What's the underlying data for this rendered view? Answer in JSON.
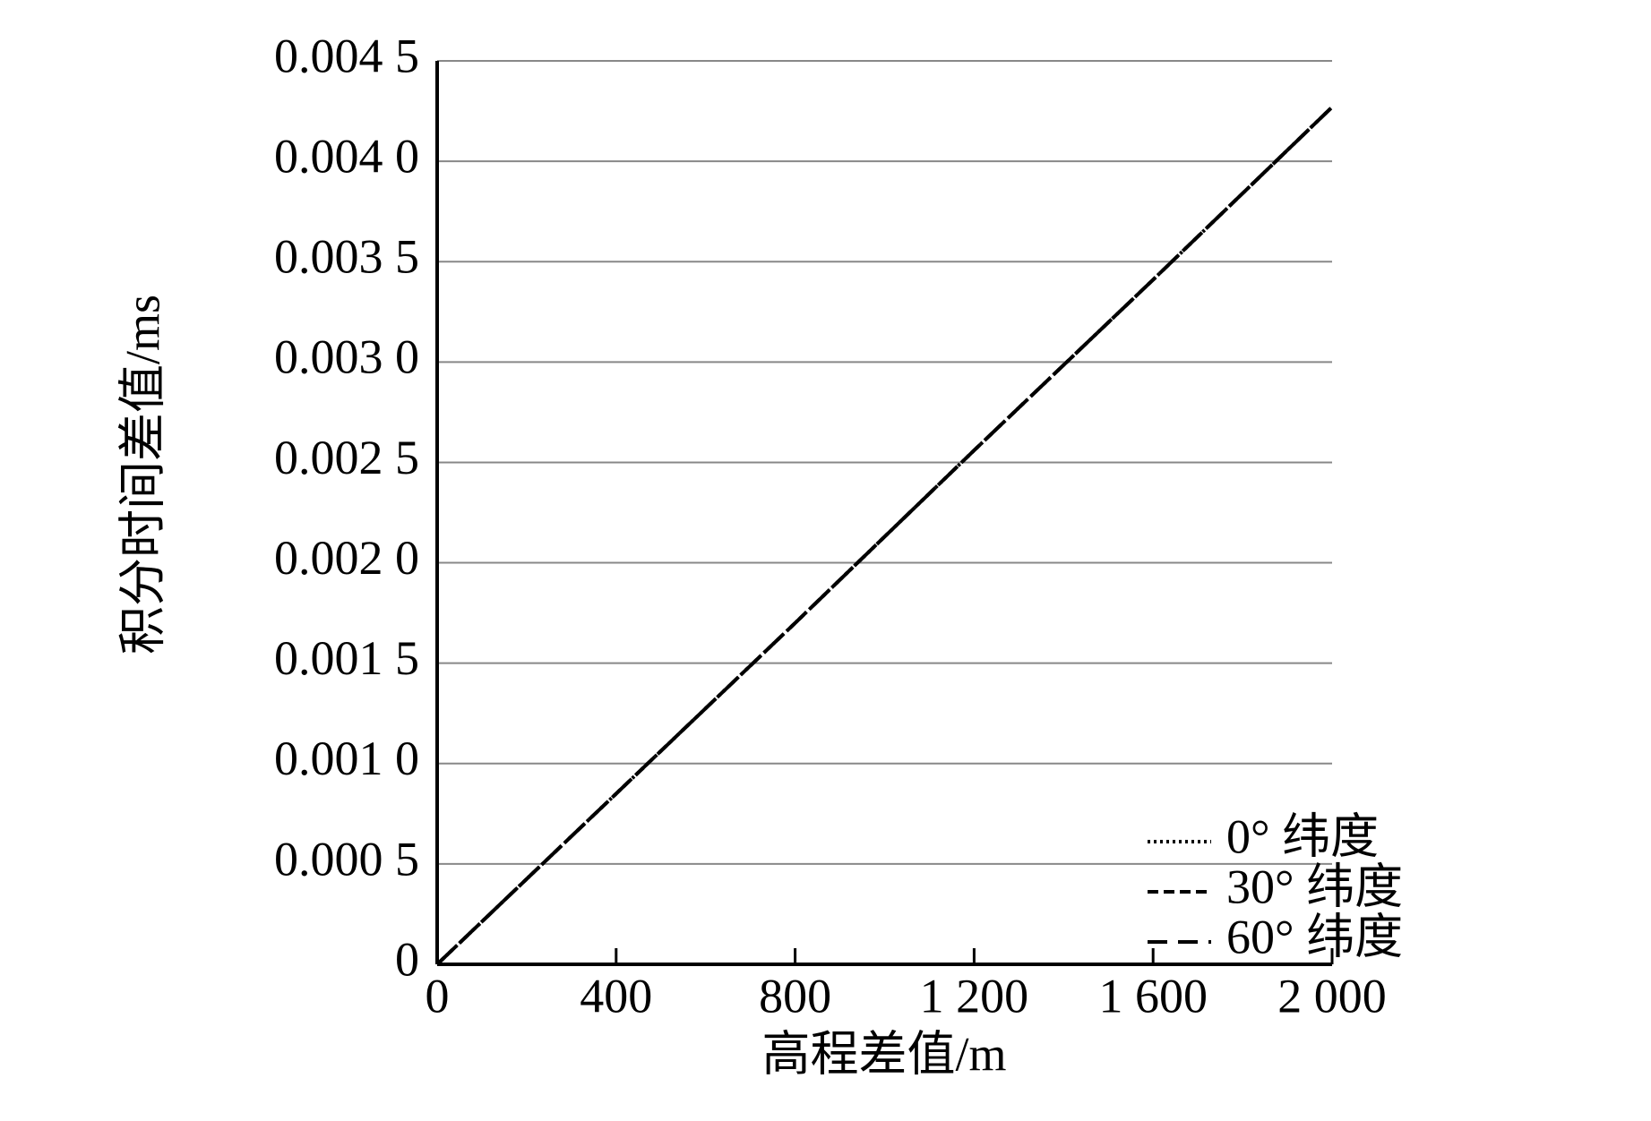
{
  "chart_data": {
    "type": "line",
    "x_label": "高程差值/m",
    "y_label": "积分时间差值/ms",
    "x": [
      0,
      400,
      800,
      1200,
      1600,
      2000
    ],
    "series": [
      {
        "name": "0° 纬度",
        "color": "#000000",
        "line_style": "dotted",
        "values": [
          0,
          0.00085,
          0.0017,
          0.00256,
          0.00341,
          0.00427
        ]
      },
      {
        "name": "30° 纬度",
        "color": "#000000",
        "line_style": "dashed",
        "values": [
          0,
          0.00085,
          0.0017,
          0.00256,
          0.00341,
          0.00427
        ]
      },
      {
        "name": "60° 纬度",
        "color": "#000000",
        "line_style": "long-dashed",
        "values": [
          0,
          0.00085,
          0.0017,
          0.00256,
          0.00341,
          0.00427
        ]
      }
    ],
    "xlim": [
      0,
      2000
    ],
    "ylim": [
      0,
      0.0045
    ],
    "xticks": [
      0,
      400,
      800,
      {
        "value": 1200,
        "label": "1 200"
      },
      {
        "value": 1600,
        "label": "1 600"
      },
      {
        "value": 2000,
        "label": "2 000"
      }
    ],
    "yticks": [
      0,
      {
        "value": 0.0005,
        "label": "0.000 5"
      },
      {
        "value": 0.001,
        "label": "0.001 0"
      },
      {
        "value": 0.0015,
        "label": "0.001 5"
      },
      {
        "value": 0.002,
        "label": "0.002 0"
      },
      {
        "value": 0.0025,
        "label": "0.002 5"
      },
      {
        "value": 0.003,
        "label": "0.003 0"
      },
      {
        "value": 0.0035,
        "label": "0.003 5"
      },
      {
        "value": 0.004,
        "label": "0.004 0"
      },
      {
        "value": 0.0045,
        "label": "0.004 5"
      }
    ],
    "grid": true,
    "legend": "lower right"
  }
}
